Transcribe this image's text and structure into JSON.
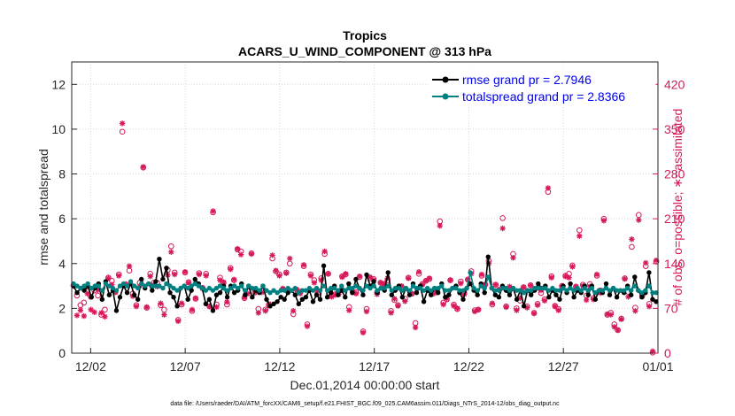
{
  "chart_data": {
    "type": "line",
    "title": "Tropics",
    "subtitle": "ACARS_U_WIND_COMPONENT @ 313 hPa",
    "xlabel": "Dec.01,2014 00:00:00 start",
    "ylabel": "rmse and totalspread",
    "y2label": "# of obs: o=possible; ∗=assimilated",
    "footnote": "data file: /Users/raeder/DAI/ATM_forcXX/CAM6_setup/f.e21.FHIST_BGC.f09_025.CAM6assim.011/Diags_NTrS_2014-12/obs_diag_output.nc",
    "xlim": [
      0,
      31
    ],
    "x_ticks": [
      1,
      6,
      11,
      16,
      21,
      26,
      31
    ],
    "x_tick_labels": [
      "12/02",
      "12/07",
      "12/12",
      "12/17",
      "12/22",
      "12/27",
      "01/01"
    ],
    "ylim": [
      0,
      13
    ],
    "y_ticks": [
      0,
      2,
      4,
      6,
      8,
      10,
      12
    ],
    "y_tick_labels": [
      "0",
      "2",
      "4",
      "6",
      "8",
      "10",
      "12"
    ],
    "y2lim": [
      0,
      455
    ],
    "y2_ticks": [
      0,
      70,
      140,
      210,
      280,
      350,
      420
    ],
    "y2_tick_labels": [
      "0",
      "70",
      "140",
      "210",
      "280",
      "350",
      "420"
    ],
    "grid": true,
    "legend_position": "top-right",
    "colors": {
      "rmse": "#000000",
      "totalspread": "#008080",
      "obs": "#d6185a",
      "axis": "#262626",
      "grid": "#d9d9d9"
    },
    "legend": [
      {
        "name": "rmse grand pr = 2.7946",
        "color": "#000000"
      },
      {
        "name": "totalspread grand pr = 2.8366",
        "color": "#008080"
      }
    ],
    "series": [
      {
        "name": "rmse grand pr = 2.7946",
        "axis": "left",
        "values": [
          3.0,
          2.7,
          2.9,
          2.8,
          3.0,
          2.5,
          2.9,
          3.1,
          2.4,
          3.2,
          2.6,
          2.8,
          1.9,
          2.5,
          3.0,
          2.7,
          3.1,
          2.6,
          2.4,
          3.3,
          2.9,
          3.1,
          2.8,
          3.2,
          4.2,
          3.3,
          3.8,
          2.7,
          2.5,
          2.1,
          2.9,
          3.0,
          2.4,
          2.8,
          3.3,
          3.1,
          2.9,
          2.2,
          2.4,
          1.9,
          2.6,
          2.7,
          3.0,
          2.5,
          3.0,
          2.7,
          2.8,
          3.1,
          2.6,
          3.0,
          2.5,
          2.8,
          2.7,
          3.0,
          2.4,
          2.1,
          2.2,
          2.3,
          2.5,
          2.4,
          2.7,
          2.8,
          2.6,
          2.2,
          2.4,
          2.5,
          2.8,
          2.3,
          2.6,
          2.4,
          3.9,
          2.5,
          2.7,
          3.0,
          2.6,
          2.8,
          2.5,
          3.1,
          2.7,
          3.3,
          2.9,
          2.6,
          3.5,
          3.0,
          3.2,
          2.7,
          2.9,
          2.8,
          3.6,
          2.6,
          2.8,
          3.0,
          2.5,
          2.9,
          2.6,
          3.1,
          2.7,
          3.0,
          2.3,
          2.8,
          2.6,
          2.9,
          2.7,
          3.1,
          2.5,
          2.6,
          2.9,
          3.0,
          2.7,
          2.4,
          2.9,
          3.1,
          2.8,
          2.6,
          3.1,
          2.7,
          4.3,
          2.9,
          2.6,
          2.5,
          3.0,
          2.8,
          2.6,
          2.9,
          2.4,
          2.8,
          2.1,
          2.8,
          2.6,
          2.8,
          3.1,
          2.9,
          3.0,
          2.5,
          2.8,
          2.6,
          2.4,
          3.0,
          2.7,
          3.1,
          2.5,
          2.8,
          2.7,
          3.0,
          2.6,
          3.0,
          2.4,
          2.8,
          2.7,
          3.1,
          2.6,
          2.9,
          2.5,
          2.8,
          2.7,
          3.0,
          2.6,
          3.4,
          2.8,
          2.5,
          2.7,
          3.6,
          2.4,
          2.3
        ]
      },
      {
        "name": "totalspread grand pr = 2.8366",
        "axis": "left",
        "values": [
          3.1,
          3.0,
          2.9,
          3.0,
          3.1,
          2.9,
          3.0,
          3.0,
          2.8,
          3.1,
          3.0,
          2.9,
          2.8,
          3.0,
          3.1,
          3.0,
          3.2,
          3.0,
          2.9,
          3.1,
          3.0,
          3.1,
          3.0,
          3.0,
          3.0,
          2.9,
          3.1,
          3.0,
          2.9,
          2.8,
          2.9,
          3.0,
          2.9,
          3.0,
          3.1,
          3.0,
          2.9,
          2.8,
          2.9,
          2.8,
          2.9,
          3.0,
          2.9,
          2.8,
          2.9,
          3.0,
          2.9,
          3.0,
          2.8,
          3.0,
          2.9,
          2.9,
          2.8,
          3.0,
          2.8,
          2.7,
          2.8,
          2.7,
          2.8,
          2.8,
          2.9,
          2.8,
          2.9,
          2.7,
          2.8,
          2.8,
          2.9,
          2.8,
          2.9,
          2.8,
          3.0,
          2.8,
          2.9,
          2.9,
          2.8,
          3.0,
          2.8,
          2.9,
          2.9,
          3.0,
          2.9,
          2.8,
          3.0,
          2.9,
          3.0,
          2.8,
          2.9,
          2.9,
          3.0,
          2.8,
          2.9,
          2.9,
          2.8,
          2.9,
          2.8,
          3.0,
          2.9,
          2.9,
          2.8,
          2.9,
          2.8,
          2.9,
          2.9,
          3.0,
          2.8,
          2.8,
          2.9,
          2.9,
          2.8,
          2.8,
          2.9,
          3.6,
          2.9,
          2.8,
          3.0,
          2.9,
          3.4,
          2.9,
          2.8,
          2.8,
          2.9,
          2.9,
          2.8,
          2.9,
          2.8,
          2.8,
          2.7,
          2.8,
          2.8,
          2.9,
          2.9,
          2.9,
          2.9,
          2.8,
          2.9,
          2.8,
          2.8,
          2.9,
          2.8,
          2.9,
          2.8,
          2.9,
          2.8,
          2.9,
          2.8,
          2.9,
          2.7,
          2.8,
          2.8,
          2.9,
          2.8,
          2.9,
          2.8,
          2.8,
          2.8,
          2.9,
          2.8,
          3.0,
          2.8,
          2.7,
          2.8,
          3.0,
          2.7,
          2.7
        ]
      },
      {
        "name": "obs possible",
        "axis": "right",
        "marker": "o",
        "values": [
          106,
          90,
          75,
          79,
          104,
          88,
          98,
          90,
          60,
          68,
          118,
          113,
          96,
          123,
          346,
          107,
          129,
          93,
          75,
          110,
          290,
          71,
          124,
          110,
          110,
          75,
          68,
          130,
          167,
          126,
          52,
          76,
          126,
          111,
          66,
          85,
          125,
          102,
          124,
          73,
          220,
          76,
          118,
          110,
          76,
          133,
          114,
          162,
          159,
          86,
          97,
          156,
          98,
          69,
          97,
          68,
          75,
          148,
          128,
          123,
          100,
          126,
          140,
          61,
          99,
          96,
          136,
          45,
          123,
          114,
          94,
          117,
          155,
          124,
          90,
          92,
          96,
          120,
          123,
          72,
          96,
          95,
          119,
          34,
          69,
          117,
          116,
          95,
          110,
          108,
          114,
          66,
          83,
          75,
          104,
          85,
          118,
          93,
          47,
          124,
          108,
          113,
          116,
          93,
          95,
          206,
          79,
          84,
          114,
          76,
          69,
          112,
          94,
          115,
          128,
          67,
          68,
          121,
          107,
          144,
          76,
          107,
          99,
          211,
          73,
          102,
          155,
          70,
          82,
          103,
          73,
          106,
          63,
          77,
          94,
          84,
          252,
          120,
          74,
          69,
          105,
          121,
          124,
          137,
          104,
          192,
          107,
          90,
          108,
          86,
          121,
          98,
          210,
          60,
          63,
          45,
          36,
          54,
          117,
          96,
          166,
          71,
          216,
          90,
          136,
          77,
          1,
          143
        ]
      },
      {
        "name": "obs assimilated",
        "axis": "right",
        "marker": "*",
        "values": [
          105,
          59,
          67,
          58,
          93,
          68,
          64,
          99,
          63,
          57,
          117,
          107,
          95,
          121,
          359,
          108,
          136,
          89,
          73,
          105,
          291,
          72,
          120,
          107,
          104,
          78,
          60,
          122,
          158,
          123,
          50,
          78,
          127,
          110,
          68,
          86,
          123,
          101,
          121,
          73,
          222,
          72,
          114,
          111,
          80,
          131,
          115,
          163,
          154,
          87,
          93,
          155,
          94,
          63,
          95,
          66,
          77,
          153,
          129,
          121,
          101,
          125,
          148,
          66,
          99,
          93,
          138,
          42,
          121,
          110,
          97,
          114,
          159,
          124,
          88,
          91,
          92,
          119,
          124,
          67,
          95,
          93,
          120,
          32,
          65,
          119,
          114,
          92,
          110,
          108,
          117,
          63,
          85,
          74,
          105,
          81,
          117,
          93,
          40,
          127,
          107,
          113,
          117,
          94,
          97,
          199,
          76,
          85,
          114,
          74,
          70,
          109,
          92,
          115,
          124,
          65,
          68,
          123,
          107,
          140,
          78,
          107,
          99,
          195,
          72,
          104,
          149,
          67,
          86,
          103,
          71,
          106,
          62,
          75,
          98,
          82,
          258,
          118,
          73,
          67,
          104,
          120,
          118,
          135,
          104,
          183,
          105,
          83,
          104,
          84,
          123,
          94,
          207,
          61,
          60,
          41,
          36,
          53,
          116,
          88,
          178,
          66,
          208,
          89,
          141,
          73,
          3,
          145
        ]
      }
    ]
  }
}
